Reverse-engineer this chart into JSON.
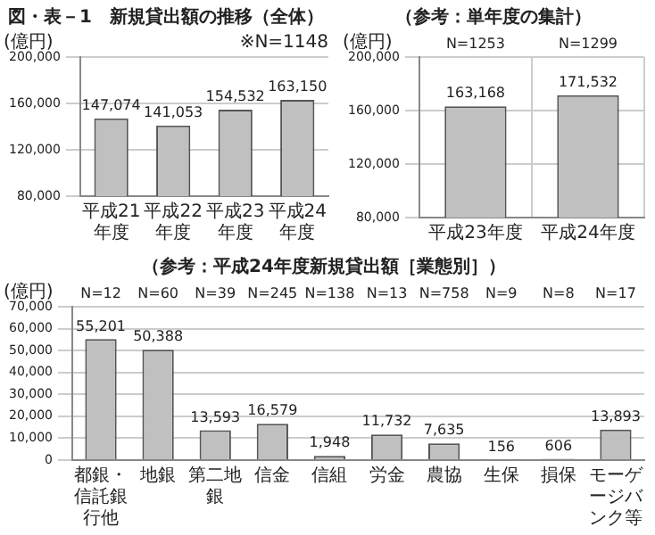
{
  "chart_data": [
    {
      "type": "bar",
      "title": "図・表－1　新規貸出額の推移（全体）",
      "ylabel": "(億円)",
      "categories": [
        "平成21年度",
        "平成22年度",
        "平成23年度",
        "平成24年度"
      ],
      "values": [
        147074,
        141053,
        154532,
        163150
      ],
      "value_labels": [
        "147,074",
        "141,053",
        "154,532",
        "163,150"
      ],
      "color": "#c0c0c0",
      "ylim": [
        80000,
        200000
      ],
      "yticks": [
        {
          "value": 80000,
          "label": "80,000"
        },
        {
          "value": 120000,
          "label": "120,000"
        },
        {
          "value": 160000,
          "label": "160,000"
        },
        {
          "value": 200000,
          "label": "200,000"
        }
      ],
      "grid": "y",
      "annotations": [
        "※N=1148"
      ]
    },
    {
      "type": "bar",
      "title": "（参考：単年度の集計）",
      "ylabel": "(億円)",
      "categories": [
        "平成23年度",
        "平成24年度"
      ],
      "values": [
        163168,
        171532
      ],
      "value_labels": [
        "163,168",
        "171,532"
      ],
      "color": "#c0c0c0",
      "ylim": [
        80000,
        200000
      ],
      "yticks": [
        {
          "value": 80000,
          "label": "80,000"
        },
        {
          "value": 120000,
          "label": "120,000"
        },
        {
          "value": 160000,
          "label": "160,000"
        },
        {
          "value": 200000,
          "label": "200,000"
        }
      ],
      "grid": true,
      "annotations": [
        "N=1253",
        "N=1299"
      ]
    },
    {
      "type": "bar",
      "title": "（参考：平成24年度新規貸出額［業態別］）",
      "ylabel": "(億円)",
      "categories": [
        "都銀・信託銀行他",
        "地銀",
        "第二地銀",
        "信金",
        "信組",
        "労金",
        "農協",
        "生保",
        "損保",
        "モーゲージバンク等"
      ],
      "values": [
        55201,
        50388,
        13593,
        16579,
        1948,
        11732,
        7635,
        156,
        606,
        13893
      ],
      "value_labels": [
        "55,201",
        "50,388",
        "13,593",
        "16,579",
        "1,948",
        "11,732",
        "7,635",
        "156",
        "606",
        "13,893"
      ],
      "color": "#c0c0c0",
      "ylim": [
        0,
        70000
      ],
      "yticks": [
        0,
        {
          "value": 10000,
          "label": "10,000"
        },
        {
          "value": 20000,
          "label": "20,000"
        },
        {
          "value": 30000,
          "label": "30,000"
        },
        {
          "value": 40000,
          "label": "40,000"
        },
        {
          "value": 50000,
          "label": "50,000"
        },
        {
          "value": 60000,
          "label": "60,000"
        },
        {
          "value": 70000,
          "label": "70,000"
        }
      ],
      "grid": "y",
      "annotations": [
        "N=12",
        "N=60",
        "N=39",
        "N=245",
        "N=138",
        "N=13",
        "N=758",
        "N=9",
        "N=8",
        "N=17"
      ]
    }
  ]
}
